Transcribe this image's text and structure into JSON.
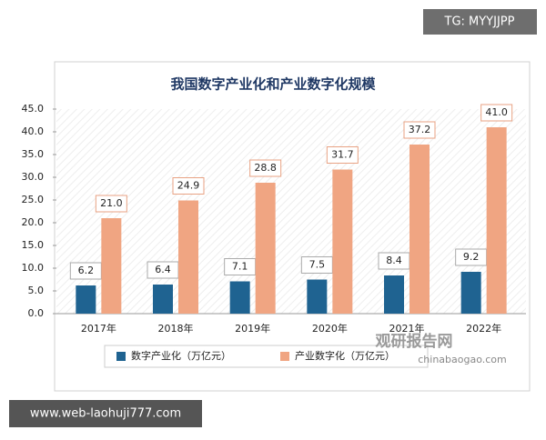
{
  "overlays": [
    "TG: MYYJJPP",
    "www.web-laohuji777.com"
  ],
  "chart_data": {
    "type": "bar",
    "title": "我国数字产业化和产业数字化规模",
    "categories": [
      "2017年",
      "2018年",
      "2019年",
      "2020年",
      "2021年",
      "2022年"
    ],
    "series": [
      {
        "name": "数字产业化（万亿元）",
        "color": "#1f6391",
        "values": [
          6.2,
          6.4,
          7.1,
          7.5,
          8.4,
          9.2
        ]
      },
      {
        "name": "产业数字化（万亿元）",
        "color": "#f0a582",
        "values": [
          21.0,
          24.9,
          28.8,
          31.7,
          37.2,
          41.0
        ],
        "value_labels": [
          "21.0",
          "24.9",
          "28.8",
          "31.7",
          "37.2",
          "41.0"
        ]
      }
    ],
    "ylim": [
      0,
      45
    ],
    "yticks": [
      {
        "value": 0,
        "label": "0.0"
      },
      {
        "value": 5,
        "label": "5.0"
      },
      {
        "value": 10,
        "label": "10.0"
      },
      {
        "value": 15,
        "label": "15.0"
      },
      {
        "value": 20,
        "label": "20.0"
      },
      {
        "value": 25,
        "label": "25.0"
      },
      {
        "value": 30,
        "label": "30.0"
      },
      {
        "value": 35,
        "label": "35.0"
      },
      {
        "value": 40,
        "label": "40.0"
      },
      {
        "value": 45,
        "label": "45.0"
      }
    ],
    "grid": false,
    "legend": "bottom",
    "source_logo": "观研报告网",
    "source_url": "chinabaogao.com"
  }
}
